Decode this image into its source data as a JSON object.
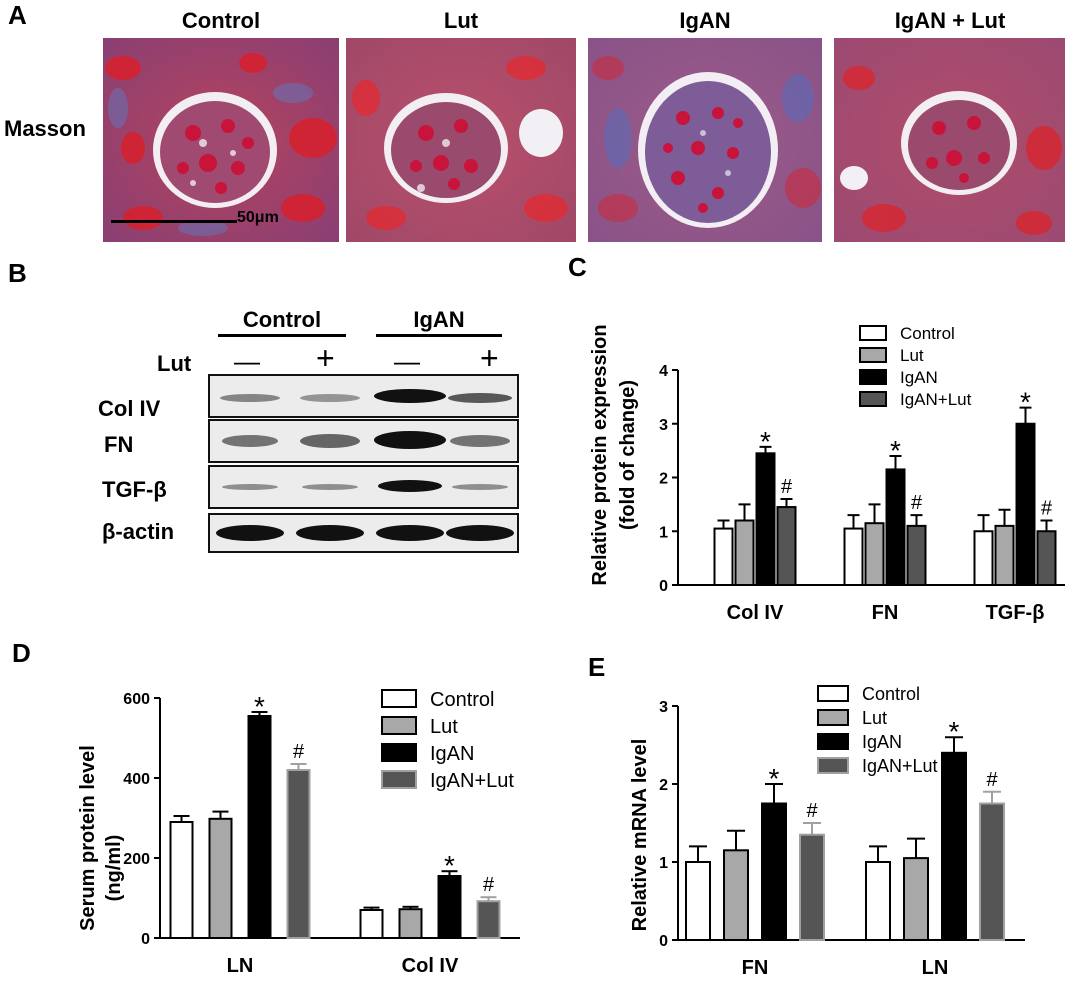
{
  "panelA": {
    "letter": "A",
    "row_label": "Masson",
    "columns": [
      "Control",
      "Lut",
      "IgAN",
      "IgAN +  Lut"
    ],
    "scale_bar": "50μm"
  },
  "panelB": {
    "letter": "B",
    "groups": [
      "Control",
      "IgAN"
    ],
    "treatment_label": "Lut",
    "treatment_signs": [
      "—",
      "+",
      "—",
      "+"
    ],
    "rows": [
      "Col IV",
      "FN",
      "TGF-β",
      "β-actin"
    ]
  },
  "charts": {
    "C": {
      "letter": "C",
      "ylabel_line1": "Relative protein expression",
      "ylabel_line2": "(fold of change)",
      "legend": [
        "Control",
        "Lut",
        "IgAN",
        "IgAN+Lut"
      ]
    },
    "D": {
      "letter": "D",
      "ylabel_line1": "Serum protein level",
      "ylabel_line2": "(ng/ml)",
      "legend": [
        "Control",
        "Lut",
        "IgAN",
        "IgAN+Lut"
      ]
    },
    "E": {
      "letter": "E",
      "ylabel_line1": "Relative mRNA level",
      "legend": [
        "Control",
        "Lut",
        "IgAN",
        "IgAN+Lut"
      ]
    }
  },
  "chart_data": [
    {
      "id": "C",
      "type": "bar",
      "categories": [
        "Col IV",
        "FN",
        "TGF-β"
      ],
      "series": [
        {
          "name": "Control",
          "values": [
            1.05,
            1.05,
            1.0
          ],
          "errors": [
            0.15,
            0.25,
            0.3
          ],
          "fill": "#ffffff",
          "stroke": "#000000"
        },
        {
          "name": "Lut",
          "values": [
            1.2,
            1.15,
            1.1
          ],
          "errors": [
            0.3,
            0.35,
            0.3
          ],
          "fill": "#a8a8a8",
          "stroke": "#000000"
        },
        {
          "name": "IgAN",
          "values": [
            2.45,
            2.15,
            3.0
          ],
          "errors": [
            0.12,
            0.25,
            0.3
          ],
          "fill": "#000000",
          "stroke": "#000000"
        },
        {
          "name": "IgAN+Lut",
          "values": [
            1.45,
            1.1,
            1.0
          ],
          "errors": [
            0.15,
            0.2,
            0.2
          ],
          "fill": "#555555",
          "stroke": "#000000"
        }
      ],
      "annotations": [
        {
          "category": 0,
          "series": 2,
          "text": "*"
        },
        {
          "category": 0,
          "series": 3,
          "text": "#"
        },
        {
          "category": 1,
          "series": 2,
          "text": "*"
        },
        {
          "category": 1,
          "series": 3,
          "text": "#"
        },
        {
          "category": 2,
          "series": 2,
          "text": "*"
        },
        {
          "category": 2,
          "series": 3,
          "text": "#"
        }
      ],
      "ylim": [
        0,
        4
      ],
      "yticks": [
        "0",
        "1",
        "2",
        "3",
        "4"
      ],
      "legend_position": "top-right"
    },
    {
      "id": "D",
      "type": "bar",
      "categories": [
        "LN",
        "Col IV"
      ],
      "series": [
        {
          "name": "Control",
          "values": [
            290,
            70
          ],
          "errors": [
            15,
            6
          ],
          "fill": "#ffffff",
          "stroke": "#000000"
        },
        {
          "name": "Lut",
          "values": [
            298,
            72
          ],
          "errors": [
            18,
            6
          ],
          "fill": "#a8a8a8",
          "stroke": "#000000"
        },
        {
          "name": "IgAN",
          "values": [
            555,
            155
          ],
          "errors": [
            10,
            12
          ],
          "fill": "#000000",
          "stroke": "#000000"
        },
        {
          "name": "IgAN+Lut",
          "values": [
            420,
            92
          ],
          "errors": [
            15,
            10
          ],
          "fill": "#555555",
          "stroke": "#a0a0a0"
        }
      ],
      "annotations": [
        {
          "category": 0,
          "series": 2,
          "text": "*"
        },
        {
          "category": 0,
          "series": 3,
          "text": "#"
        },
        {
          "category": 1,
          "series": 2,
          "text": "*"
        },
        {
          "category": 1,
          "series": 3,
          "text": "#"
        }
      ],
      "ylim": [
        0,
        600
      ],
      "yticks": [
        "0",
        "200",
        "400",
        "600"
      ],
      "legend_position": "top-right"
    },
    {
      "id": "E",
      "type": "bar",
      "categories": [
        "FN",
        "LN"
      ],
      "series": [
        {
          "name": "Control",
          "values": [
            1.0,
            1.0
          ],
          "errors": [
            0.2,
            0.2
          ],
          "fill": "#ffffff",
          "stroke": "#000000"
        },
        {
          "name": "Lut",
          "values": [
            1.15,
            1.05
          ],
          "errors": [
            0.25,
            0.25
          ],
          "fill": "#a8a8a8",
          "stroke": "#000000"
        },
        {
          "name": "IgAN",
          "values": [
            1.75,
            2.4
          ],
          "errors": [
            0.25,
            0.2
          ],
          "fill": "#000000",
          "stroke": "#000000"
        },
        {
          "name": "IgAN+Lut",
          "values": [
            1.35,
            1.75
          ],
          "errors": [
            0.15,
            0.15
          ],
          "fill": "#555555",
          "stroke": "#a0a0a0"
        }
      ],
      "annotations": [
        {
          "category": 0,
          "series": 2,
          "text": "*"
        },
        {
          "category": 0,
          "series": 3,
          "text": "#"
        },
        {
          "category": 1,
          "series": 2,
          "text": "*"
        },
        {
          "category": 1,
          "series": 3,
          "text": "#"
        }
      ],
      "ylim": [
        0,
        3
      ],
      "yticks": [
        "0",
        "1",
        "2",
        "3"
      ],
      "legend_position": "top-right"
    }
  ]
}
